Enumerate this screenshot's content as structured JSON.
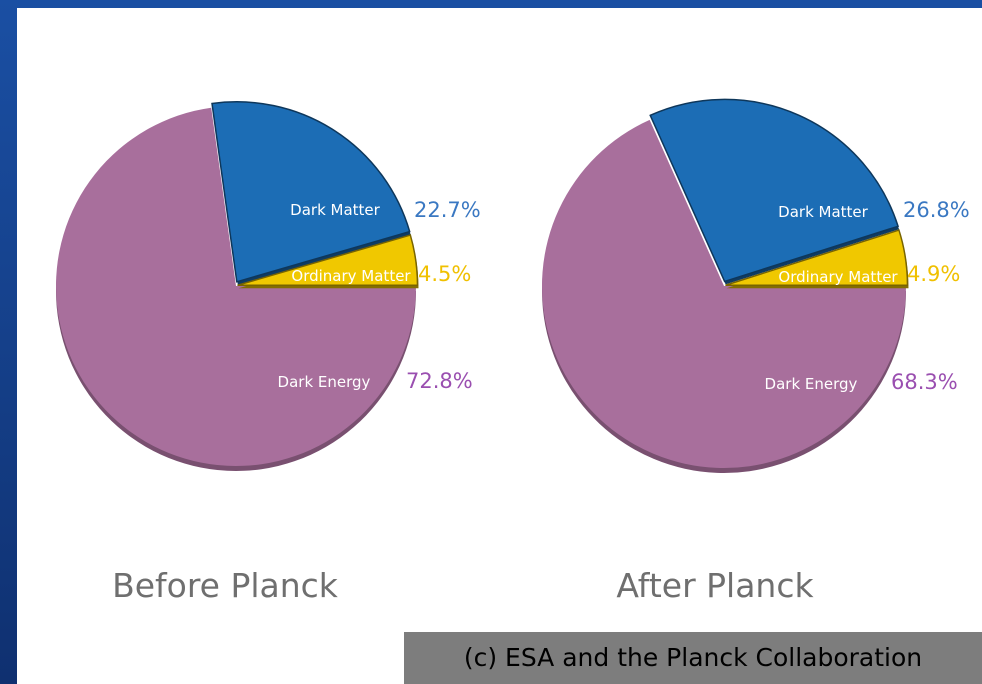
{
  "chart_data": [
    {
      "type": "pie",
      "title": "Before Planck",
      "slices": [
        {
          "label": "Dark Energy",
          "value": 72.8,
          "value_label": "72.8%",
          "color": "#a86f9c",
          "label_color": "#9a4fb0"
        },
        {
          "label": "Dark Matter",
          "value": 22.7,
          "value_label": "22.7%",
          "color": "#1c6db5",
          "label_color": "#3a78c2"
        },
        {
          "label": "Ordinary Matter",
          "value": 4.5,
          "value_label": "4.5%",
          "color": "#f0c800",
          "label_color": "#f0c000"
        }
      ]
    },
    {
      "type": "pie",
      "title": "After Planck",
      "slices": [
        {
          "label": "Dark Energy",
          "value": 68.3,
          "value_label": "68.3%",
          "color": "#a86f9c",
          "label_color": "#9a4fb0"
        },
        {
          "label": "Dark Matter",
          "value": 26.8,
          "value_label": "26.8%",
          "color": "#1c6db5",
          "label_color": "#3a78c2"
        },
        {
          "label": "Ordinary Matter",
          "value": 4.9,
          "value_label": "4.9%",
          "color": "#f0c800",
          "label_color": "#f0c000"
        }
      ]
    }
  ],
  "credit": "(c) ESA and the Planck Collaboration"
}
